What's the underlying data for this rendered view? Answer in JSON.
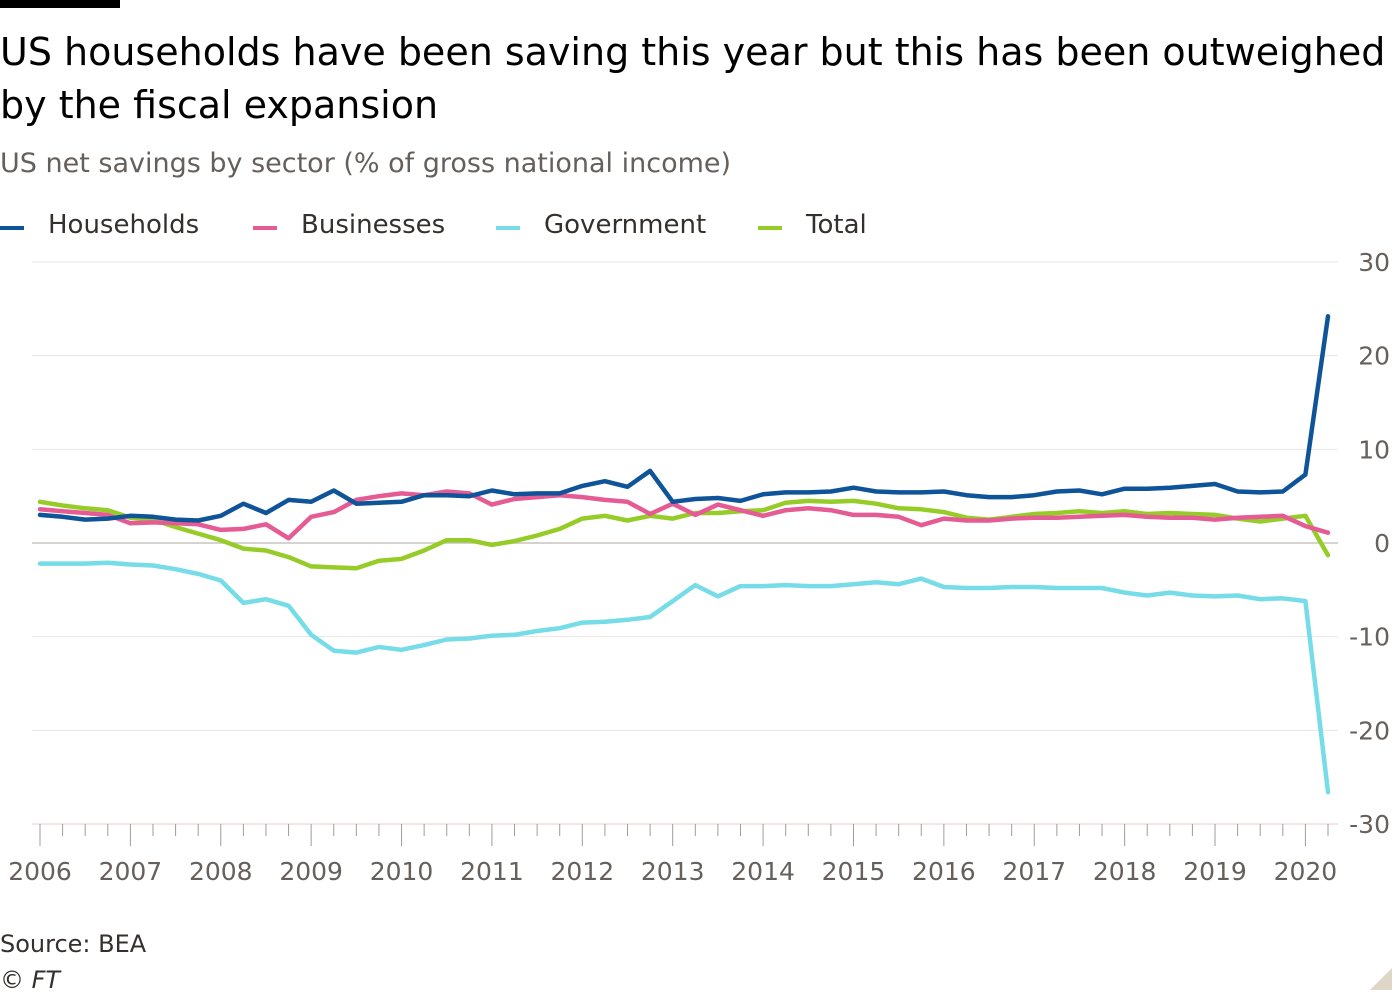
{
  "header": {
    "title": "US households have been saving this year but this has been outweighed by the fiscal expansion",
    "subtitle": "US net savings by sector (% of gross national income)"
  },
  "footer": {
    "source": "Source: BEA",
    "copyright": "© FT"
  },
  "chart_data": {
    "type": "line",
    "title": "US households have been saving this year but this has been outweighed by the fiscal expansion",
    "subtitle": "US net savings by sector (% of gross national income)",
    "xlabel": "",
    "ylabel": "",
    "x_tick_labels": [
      "2006",
      "2007",
      "2008",
      "2009",
      "2010",
      "2011",
      "2012",
      "2013",
      "2014",
      "2015",
      "2016",
      "2017",
      "2018",
      "2019",
      "2020"
    ],
    "y_ticks": [
      30,
      20,
      10,
      0,
      -10,
      -20,
      -30
    ],
    "y_tick_labels": [
      "30",
      "20",
      "10",
      "0",
      "-10",
      "-20",
      "-30"
    ],
    "ylim": [
      -30,
      30
    ],
    "xlim": [
      2006.0,
      2020.25
    ],
    "grid": true,
    "y_axis_position": "right",
    "legend_position": "top-left",
    "x": [
      2006.0,
      2006.25,
      2006.5,
      2006.75,
      2007.0,
      2007.25,
      2007.5,
      2007.75,
      2008.0,
      2008.25,
      2008.5,
      2008.75,
      2009.0,
      2009.25,
      2009.5,
      2009.75,
      2010.0,
      2010.25,
      2010.5,
      2010.75,
      2011.0,
      2011.25,
      2011.5,
      2011.75,
      2012.0,
      2012.25,
      2012.5,
      2012.75,
      2013.0,
      2013.25,
      2013.5,
      2013.75,
      2014.0,
      2014.25,
      2014.5,
      2014.75,
      2015.0,
      2015.25,
      2015.5,
      2015.75,
      2016.0,
      2016.25,
      2016.5,
      2016.75,
      2017.0,
      2017.25,
      2017.5,
      2017.75,
      2018.0,
      2018.25,
      2018.5,
      2018.75,
      2019.0,
      2019.25,
      2019.5,
      2019.75,
      2020.0,
      2020.25
    ],
    "series": [
      {
        "name": "Households",
        "color": "#0f5499",
        "values": [
          3.0,
          2.8,
          2.5,
          2.6,
          2.9,
          2.8,
          2.5,
          2.4,
          2.9,
          4.2,
          3.2,
          4.6,
          4.4,
          5.6,
          4.2,
          4.3,
          4.4,
          5.1,
          5.1,
          5.0,
          5.6,
          5.2,
          5.3,
          5.3,
          6.1,
          6.6,
          6.0,
          7.7,
          4.4,
          4.7,
          4.8,
          4.5,
          5.2,
          5.4,
          5.4,
          5.5,
          5.9,
          5.5,
          5.4,
          5.4,
          5.5,
          5.1,
          4.9,
          4.9,
          5.1,
          5.5,
          5.6,
          5.2,
          5.8,
          5.8,
          5.9,
          6.1,
          6.3,
          5.5,
          5.4,
          5.5,
          7.3,
          24.2
        ]
      },
      {
        "name": "Businesses",
        "color": "#e55b94",
        "values": [
          3.6,
          3.4,
          3.2,
          3.0,
          2.1,
          2.2,
          2.1,
          2.0,
          1.4,
          1.5,
          2.0,
          0.5,
          2.8,
          3.3,
          4.6,
          5.0,
          5.3,
          5.1,
          5.5,
          5.3,
          4.1,
          4.7,
          4.9,
          5.1,
          4.9,
          4.6,
          4.4,
          3.1,
          4.2,
          3.0,
          4.1,
          3.5,
          2.9,
          3.5,
          3.7,
          3.5,
          3.0,
          3.0,
          2.8,
          1.9,
          2.6,
          2.4,
          2.4,
          2.6,
          2.7,
          2.7,
          2.8,
          2.9,
          3.0,
          2.8,
          2.7,
          2.7,
          2.5,
          2.7,
          2.8,
          2.9,
          1.8,
          1.1
        ]
      },
      {
        "name": "Government",
        "color": "#75dce8",
        "values": [
          -2.2,
          -2.2,
          -2.2,
          -2.1,
          -2.3,
          -2.4,
          -2.8,
          -3.3,
          -4.0,
          -6.4,
          -6.0,
          -6.7,
          -9.8,
          -11.5,
          -11.7,
          -11.1,
          -11.4,
          -10.9,
          -10.3,
          -10.2,
          -9.9,
          -9.8,
          -9.4,
          -9.1,
          -8.5,
          -8.4,
          -8.2,
          -7.9,
          -6.2,
          -4.5,
          -5.7,
          -4.6,
          -4.6,
          -4.5,
          -4.6,
          -4.6,
          -4.4,
          -4.2,
          -4.4,
          -3.8,
          -4.7,
          -4.8,
          -4.8,
          -4.7,
          -4.7,
          -4.8,
          -4.8,
          -4.8,
          -5.3,
          -5.6,
          -5.3,
          -5.6,
          -5.7,
          -5.6,
          -6.0,
          -5.9,
          -6.2,
          -26.6
        ]
      },
      {
        "name": "Total",
        "color": "#96cc28",
        "values": [
          4.4,
          4.0,
          3.7,
          3.5,
          2.7,
          2.5,
          1.7,
          1.0,
          0.3,
          -0.6,
          -0.8,
          -1.5,
          -2.5,
          -2.6,
          -2.7,
          -1.9,
          -1.7,
          -0.8,
          0.3,
          0.3,
          -0.2,
          0.2,
          0.8,
          1.5,
          2.6,
          2.9,
          2.4,
          2.9,
          2.6,
          3.2,
          3.2,
          3.4,
          3.5,
          4.3,
          4.5,
          4.4,
          4.5,
          4.2,
          3.7,
          3.6,
          3.3,
          2.7,
          2.5,
          2.8,
          3.1,
          3.2,
          3.4,
          3.2,
          3.4,
          3.1,
          3.2,
          3.1,
          3.0,
          2.6,
          2.3,
          2.6,
          2.9,
          -1.3
        ]
      }
    ]
  }
}
